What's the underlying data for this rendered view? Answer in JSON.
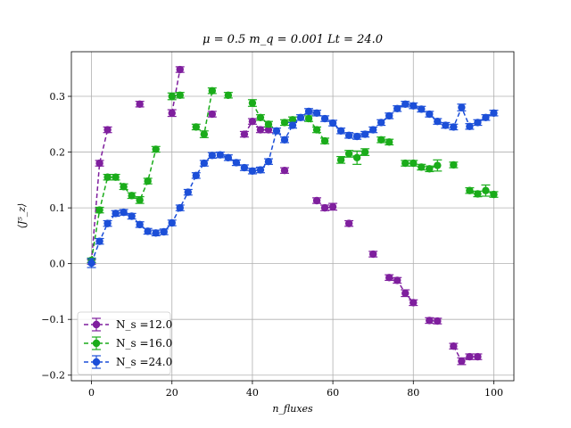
{
  "chart_data": {
    "type": "scatter",
    "title": "μ = 0.5 m_q = 0.001 Lt = 24.0",
    "xlabel": "n_fluxes",
    "ylabel": "⟨J⁵_z⟩",
    "xlim": [
      -5,
      105
    ],
    "ylim": [
      -0.21,
      0.38
    ],
    "xticks": [
      "0",
      "20",
      "40",
      "60",
      "80",
      "100"
    ],
    "yticks": [
      "−0.2",
      "−0.1",
      "0.0",
      "0.1",
      "0.2",
      "0.3"
    ],
    "grid": true,
    "legend_position": "lower-left",
    "series": [
      {
        "name": "N_s =12.0",
        "color": "#7f1f9e",
        "line_style": "dashed",
        "x": [
          0,
          2,
          4,
          12,
          20,
          22,
          30,
          38,
          40,
          42,
          44,
          48,
          56,
          58,
          60,
          64,
          70,
          74,
          76,
          78,
          80,
          84,
          86,
          90,
          92,
          94,
          96
        ],
        "y": [
          0.003,
          0.18,
          0.24,
          0.286,
          0.27,
          0.348,
          0.268,
          0.232,
          0.255,
          0.24,
          0.24,
          0.167,
          0.113,
          0.1,
          0.102,
          0.072,
          0.017,
          -0.025,
          -0.03,
          -0.053,
          -0.07,
          -0.102,
          -0.103,
          -0.148,
          -0.175,
          -0.167,
          -0.167
        ],
        "err": [
          0.004,
          0.005,
          0.005,
          0.005,
          0.006,
          0.005,
          0.005,
          0.005,
          0.005,
          0.005,
          0.005,
          0.005,
          0.005,
          0.005,
          0.006,
          0.005,
          0.005,
          0.005,
          0.005,
          0.006,
          0.005,
          0.005,
          0.005,
          0.005,
          0.006,
          0.005,
          0.005
        ]
      },
      {
        "name": "N_s =16.0",
        "color": "#1aac1a",
        "line_style": "dashed",
        "x": [
          0,
          2,
          4,
          6,
          8,
          10,
          12,
          14,
          16,
          20,
          22,
          26,
          28,
          30,
          34,
          40,
          42,
          44,
          48,
          50,
          54,
          56,
          58,
          62,
          64,
          66,
          68,
          72,
          74,
          78,
          80,
          82,
          84,
          86,
          90,
          94,
          96,
          98,
          100
        ],
        "y": [
          0.006,
          0.096,
          0.155,
          0.155,
          0.138,
          0.122,
          0.114,
          0.148,
          0.205,
          0.3,
          0.302,
          0.245,
          0.232,
          0.31,
          0.302,
          0.288,
          0.262,
          0.25,
          0.253,
          0.258,
          0.26,
          0.24,
          0.22,
          0.186,
          0.197,
          0.19,
          0.2,
          0.222,
          0.218,
          0.18,
          0.18,
          0.173,
          0.17,
          0.176,
          0.177,
          0.131,
          0.125,
          0.131,
          0.124
        ],
        "err": [
          0.004,
          0.005,
          0.005,
          0.005,
          0.005,
          0.005,
          0.006,
          0.005,
          0.005,
          0.006,
          0.005,
          0.005,
          0.006,
          0.005,
          0.005,
          0.006,
          0.005,
          0.005,
          0.005,
          0.005,
          0.005,
          0.005,
          0.005,
          0.006,
          0.006,
          0.012,
          0.006,
          0.005,
          0.005,
          0.005,
          0.005,
          0.005,
          0.005,
          0.01,
          0.005,
          0.005,
          0.005,
          0.01,
          0.005
        ]
      },
      {
        "name": "N_s =24.0",
        "color": "#1c4fd8",
        "line_style": "dashed",
        "x": [
          0,
          2,
          4,
          6,
          8,
          10,
          12,
          14,
          16,
          18,
          20,
          22,
          24,
          26,
          28,
          30,
          32,
          34,
          36,
          38,
          40,
          42,
          44,
          46,
          48,
          50,
          52,
          54,
          56,
          58,
          60,
          62,
          64,
          66,
          68,
          70,
          72,
          74,
          76,
          78,
          80,
          82,
          84,
          86,
          88,
          90,
          92,
          94,
          96,
          98,
          100
        ],
        "y": [
          0.001,
          0.04,
          0.072,
          0.09,
          0.092,
          0.085,
          0.07,
          0.058,
          0.055,
          0.057,
          0.073,
          0.1,
          0.128,
          0.158,
          0.18,
          0.194,
          0.195,
          0.19,
          0.181,
          0.172,
          0.166,
          0.168,
          0.183,
          0.238,
          0.222,
          0.248,
          0.262,
          0.273,
          0.27,
          0.26,
          0.252,
          0.238,
          0.23,
          0.228,
          0.232,
          0.24,
          0.253,
          0.265,
          0.278,
          0.286,
          0.283,
          0.277,
          0.268,
          0.255,
          0.248,
          0.245,
          0.28,
          0.246,
          0.253,
          0.262,
          0.27
        ],
        "err": [
          0.008,
          0.005,
          0.005,
          0.005,
          0.005,
          0.005,
          0.005,
          0.005,
          0.005,
          0.005,
          0.005,
          0.005,
          0.005,
          0.005,
          0.005,
          0.005,
          0.005,
          0.005,
          0.005,
          0.005,
          0.005,
          0.005,
          0.005,
          0.005,
          0.005,
          0.005,
          0.005,
          0.005,
          0.005,
          0.005,
          0.005,
          0.005,
          0.005,
          0.005,
          0.005,
          0.005,
          0.005,
          0.005,
          0.005,
          0.005,
          0.005,
          0.005,
          0.005,
          0.005,
          0.005,
          0.005,
          0.006,
          0.005,
          0.005,
          0.005,
          0.005
        ]
      }
    ]
  }
}
